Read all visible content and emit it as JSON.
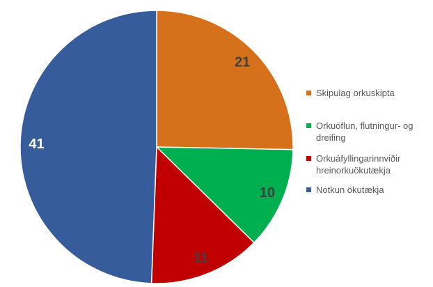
{
  "chart_data": {
    "type": "pie",
    "categories": [
      "Skipulag orkuskipta",
      "Orkuöflun, flutningur- og dreifing",
      "Orkuáfyllingarinnviðir hreinorkuökutækja",
      "Notkun ökutækja"
    ],
    "values": [
      21,
      10,
      11,
      41
    ],
    "colors": [
      "#d5711b",
      "#00b050",
      "#c00000",
      "#365c9c"
    ],
    "label_colors": [
      "#404040",
      "#404040",
      "#404040",
      "#ffffff"
    ],
    "legend": "right"
  }
}
